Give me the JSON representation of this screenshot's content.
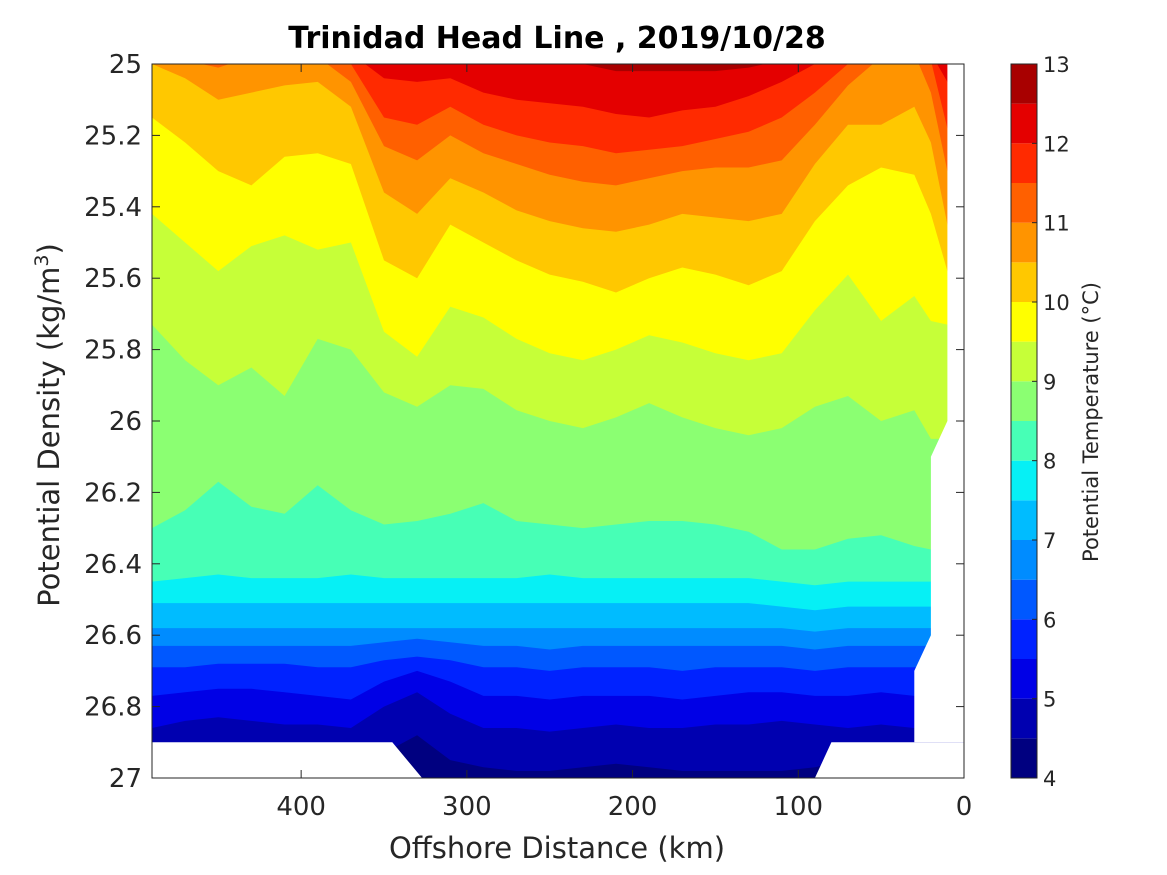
{
  "chart_data": {
    "type": "filled-contour",
    "title": "Trinidad Head Line , 2019/10/28",
    "xlabel": "Offshore Distance (km)",
    "ylabel": "Potential Density (kg/m",
    "ylabel_sup": "3",
    "ylabel_close": ")",
    "xlim": [
      490,
      0
    ],
    "x_reversed": true,
    "ylim": [
      25,
      27
    ],
    "y_reversed": true,
    "x_ticks": [
      400,
      300,
      200,
      100,
      0
    ],
    "y_ticks": [
      25,
      25.2,
      25.4,
      25.6,
      25.8,
      26,
      26.2,
      26.4,
      26.6,
      26.8,
      27
    ],
    "y_tick_labels": [
      "25",
      "25.2",
      "25.4",
      "25.6",
      "25.8",
      "26",
      "26.2",
      "26.4",
      "26.6",
      "26.8",
      "27"
    ],
    "colorbar": {
      "label": "Potential Temperature (°C)",
      "min": 4,
      "max": 13,
      "ticks": [
        4,
        5,
        6,
        7,
        8,
        9,
        10,
        11,
        12,
        13
      ],
      "levels": [
        4,
        4.5,
        5,
        5.5,
        6,
        6.5,
        7,
        7.5,
        8,
        8.5,
        9,
        9.5,
        10,
        10.5,
        11,
        11.5,
        12,
        12.5,
        13
      ],
      "colors": [
        "#000080",
        "#0000b0",
        "#0000e6",
        "#0022ff",
        "#0058ff",
        "#008cff",
        "#00bcff",
        "#06f0f5",
        "#47ffb6",
        "#8bff72",
        "#c6ff38",
        "#ffff00",
        "#ffc800",
        "#ff9400",
        "#ff6000",
        "#ff2a00",
        "#e40000",
        "#a80000"
      ]
    },
    "x_grid": [
      490,
      470,
      450,
      430,
      410,
      390,
      370,
      350,
      330,
      310,
      290,
      270,
      250,
      230,
      210,
      190,
      170,
      150,
      130,
      110,
      90,
      70,
      50,
      30,
      20,
      10
    ],
    "isotherms": [
      {
        "t": 12.5,
        "y": [
          24.97,
          24.97,
          24.97,
          24.97,
          24.97,
          24.97,
          24.97,
          24.97,
          24.97,
          24.97,
          24.99,
          25.0,
          25.0,
          25.0,
          25.02,
          25.02,
          25.02,
          25.02,
          25.01,
          24.99,
          24.97,
          24.97,
          24.97,
          24.97,
          24.97,
          24.97
        ]
      },
      {
        "t": 12.0,
        "y": [
          24.97,
          24.97,
          24.97,
          24.97,
          24.97,
          24.97,
          24.97,
          25.04,
          25.05,
          25.04,
          25.08,
          25.1,
          25.11,
          25.12,
          25.14,
          25.15,
          25.13,
          25.12,
          25.09,
          25.05,
          25.0,
          24.97,
          24.97,
          24.97,
          24.97,
          25.05
        ]
      },
      {
        "t": 11.5,
        "y": [
          24.97,
          24.97,
          24.97,
          24.97,
          24.97,
          24.97,
          25.0,
          25.15,
          25.17,
          25.12,
          25.17,
          25.2,
          25.22,
          25.23,
          25.25,
          25.24,
          25.23,
          25.21,
          25.19,
          25.15,
          25.08,
          25.0,
          24.97,
          24.97,
          24.99,
          25.18
        ]
      },
      {
        "t": 11.0,
        "y": [
          24.97,
          24.99,
          25.01,
          24.98,
          24.99,
          24.98,
          25.05,
          25.23,
          25.27,
          25.2,
          25.25,
          25.28,
          25.31,
          25.33,
          25.34,
          25.32,
          25.3,
          25.29,
          25.29,
          25.27,
          25.17,
          25.06,
          24.98,
          24.97,
          25.08,
          25.3
        ]
      },
      {
        "t": 10.5,
        "y": [
          25.0,
          25.04,
          25.1,
          25.08,
          25.06,
          25.05,
          25.12,
          25.36,
          25.42,
          25.32,
          25.36,
          25.41,
          25.44,
          25.46,
          25.47,
          25.45,
          25.42,
          25.43,
          25.44,
          25.42,
          25.28,
          25.17,
          25.17,
          25.12,
          25.22,
          25.45
        ]
      },
      {
        "t": 10.0,
        "y": [
          25.15,
          25.22,
          25.3,
          25.34,
          25.26,
          25.25,
          25.28,
          25.55,
          25.6,
          25.45,
          25.5,
          25.55,
          25.59,
          25.61,
          25.64,
          25.6,
          25.57,
          25.59,
          25.62,
          25.58,
          25.44,
          25.34,
          25.29,
          25.31,
          25.42,
          25.58
        ]
      },
      {
        "t": 9.5,
        "y": [
          25.42,
          25.5,
          25.58,
          25.51,
          25.48,
          25.52,
          25.5,
          25.75,
          25.82,
          25.68,
          25.71,
          25.77,
          25.81,
          25.83,
          25.8,
          25.76,
          25.78,
          25.81,
          25.83,
          25.81,
          25.69,
          25.59,
          25.72,
          25.65,
          25.72,
          25.73
        ]
      },
      {
        "t": 9.0,
        "y": [
          25.73,
          25.83,
          25.9,
          25.85,
          25.93,
          25.77,
          25.8,
          25.92,
          25.96,
          25.9,
          25.91,
          25.97,
          26.0,
          26.02,
          25.99,
          25.95,
          25.99,
          26.02,
          26.04,
          26.02,
          25.96,
          25.93,
          26.0,
          25.97,
          26.05,
          26.05
        ]
      },
      {
        "t": 8.5,
        "y": [
          26.3,
          26.25,
          26.17,
          26.24,
          26.26,
          26.18,
          26.25,
          26.29,
          26.28,
          26.26,
          26.23,
          26.28,
          26.29,
          26.3,
          26.29,
          26.28,
          26.28,
          26.29,
          26.31,
          26.36,
          26.36,
          26.33,
          26.32,
          26.35,
          26.36,
          26.36
        ]
      },
      {
        "t": 8.0,
        "y": [
          26.45,
          26.44,
          26.43,
          26.44,
          26.44,
          26.44,
          26.43,
          26.44,
          26.44,
          26.44,
          26.44,
          26.44,
          26.43,
          26.44,
          26.44,
          26.44,
          26.44,
          26.44,
          26.44,
          26.45,
          26.46,
          26.45,
          26.45,
          26.45,
          26.45,
          26.45
        ]
      },
      {
        "t": 7.5,
        "y": [
          26.51,
          26.51,
          26.51,
          26.51,
          26.51,
          26.51,
          26.51,
          26.51,
          26.51,
          26.51,
          26.51,
          26.51,
          26.51,
          26.51,
          26.51,
          26.51,
          26.51,
          26.51,
          26.51,
          26.52,
          26.53,
          26.52,
          26.52,
          26.52,
          26.52,
          26.52
        ]
      },
      {
        "t": 7.0,
        "y": [
          26.58,
          26.58,
          26.58,
          26.58,
          26.58,
          26.58,
          26.58,
          26.58,
          26.58,
          26.58,
          26.58,
          26.58,
          26.58,
          26.58,
          26.58,
          26.58,
          26.58,
          26.58,
          26.58,
          26.58,
          26.59,
          26.58,
          26.58,
          26.58,
          26.58,
          26.58
        ]
      },
      {
        "t": 6.5,
        "y": [
          26.63,
          26.63,
          26.63,
          26.63,
          26.63,
          26.63,
          26.63,
          26.62,
          26.61,
          26.62,
          26.63,
          26.63,
          26.64,
          26.63,
          26.63,
          26.63,
          26.63,
          26.63,
          26.63,
          26.63,
          26.64,
          26.63,
          26.63,
          26.63,
          26.63,
          26.63
        ]
      },
      {
        "t": 6.0,
        "y": [
          26.69,
          26.69,
          26.68,
          26.68,
          26.68,
          26.69,
          26.69,
          26.67,
          26.66,
          26.67,
          26.69,
          26.69,
          26.7,
          26.69,
          26.69,
          26.69,
          26.7,
          26.69,
          26.69,
          26.69,
          26.7,
          26.69,
          26.69,
          26.69,
          26.69,
          26.69
        ]
      },
      {
        "t": 5.5,
        "y": [
          26.77,
          26.76,
          26.75,
          26.75,
          26.76,
          26.77,
          26.78,
          26.73,
          26.7,
          26.73,
          26.77,
          26.77,
          26.78,
          26.77,
          26.77,
          26.77,
          26.78,
          26.77,
          26.76,
          26.76,
          26.77,
          26.77,
          26.76,
          26.77,
          26.77,
          26.77
        ]
      },
      {
        "t": 5.0,
        "y": [
          26.86,
          26.84,
          26.83,
          26.84,
          26.85,
          26.85,
          26.86,
          26.8,
          26.76,
          26.82,
          26.86,
          26.86,
          26.87,
          26.86,
          26.85,
          26.86,
          26.86,
          26.85,
          26.85,
          26.84,
          26.85,
          26.86,
          26.85,
          26.86,
          26.86,
          26.86
        ]
      },
      {
        "t": 4.5,
        "y": [
          26.95,
          26.94,
          26.93,
          26.93,
          26.94,
          26.95,
          26.95,
          26.93,
          26.88,
          26.95,
          26.97,
          26.98,
          26.98,
          26.97,
          26.96,
          26.97,
          26.98,
          26.98,
          26.98,
          26.98,
          26.97,
          26.95,
          26.95,
          26.95,
          26.95,
          26.95
        ]
      }
    ],
    "data_bottom_sigma": [
      26.9,
      26.9,
      26.9,
      26.9,
      26.9,
      26.9,
      26.9,
      26.9,
      27.0,
      27.0,
      27.0,
      27.0,
      27.0,
      27.0,
      27.0,
      27.0,
      27.0,
      27.0,
      27.0,
      27.0,
      27.0,
      26.9,
      26.9,
      26.9,
      26.6,
      26.0
    ],
    "missing_regions": [
      {
        "x": [
          490,
          345,
          327,
          490
        ],
        "y": [
          26.9,
          26.9,
          27.0,
          27.0
        ]
      },
      {
        "x": [
          90,
          80,
          0,
          0
        ],
        "y": [
          27.0,
          26.9,
          26.9,
          27.0
        ]
      },
      {
        "x": [
          30,
          30,
          20,
          20,
          10,
          10,
          0,
          0
        ],
        "y": [
          26.9,
          26.7,
          26.6,
          26.1,
          26.0,
          25.0,
          25.0,
          26.9
        ]
      }
    ]
  }
}
